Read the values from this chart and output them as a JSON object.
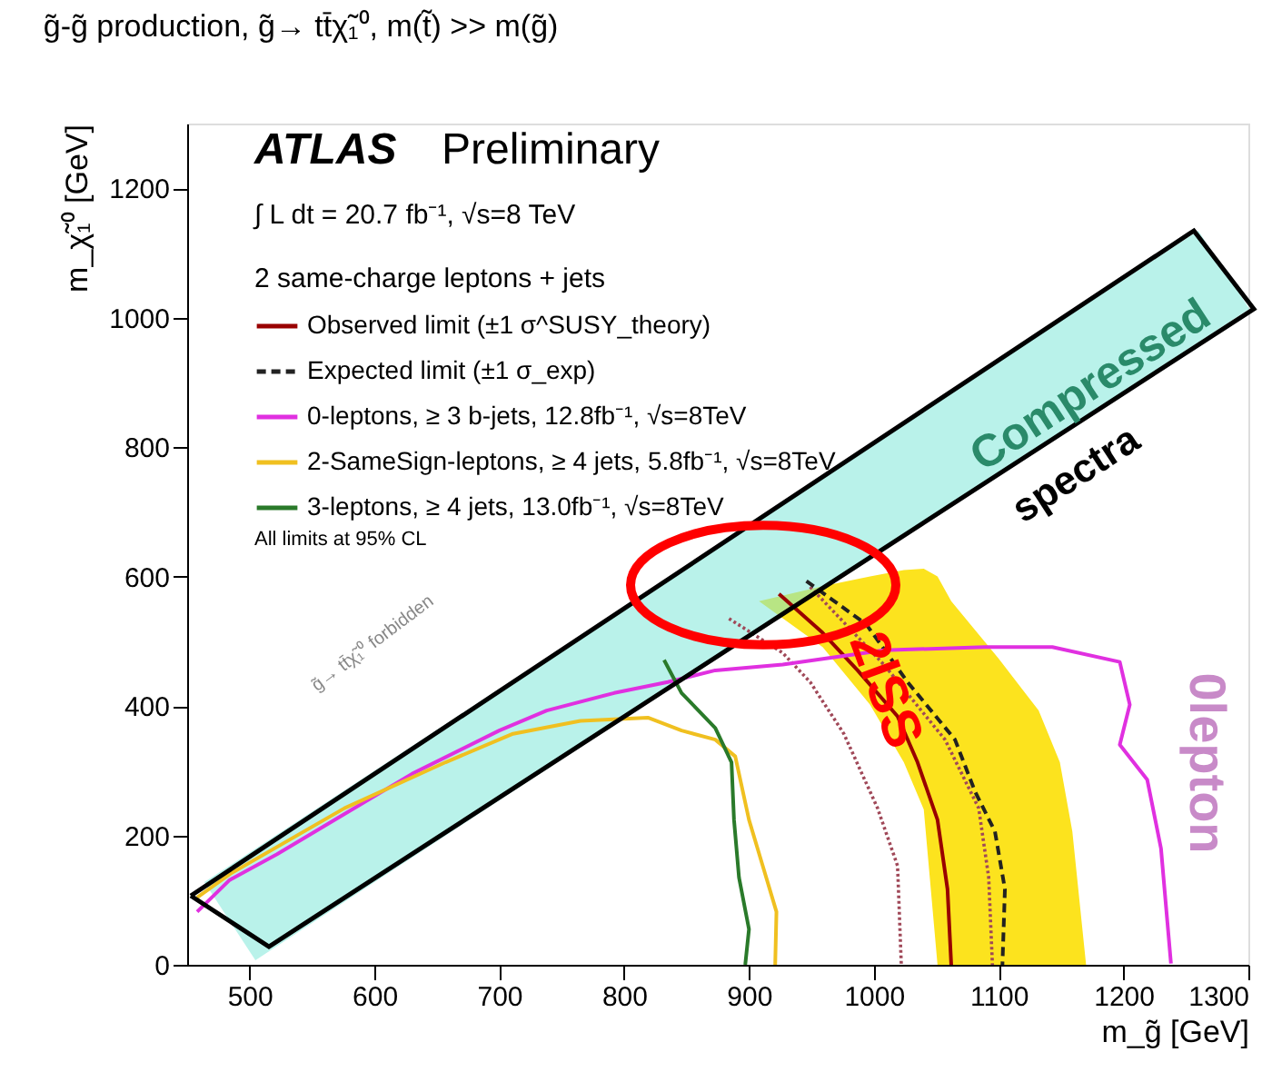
{
  "chart_data": {
    "type": "line",
    "title": "g̃-g̃ production, g̃→ tt̄χ̃₁⁰, m(t̃) >> m(g̃)",
    "xlabel": "m_g̃ [GeV]",
    "ylabel": "m_χ̃₁⁰ [GeV]",
    "legend_title": "2 same-charge leptons + jets",
    "legend": "top left",
    "xlim": [
      450,
      1300
    ],
    "xticks": [
      500,
      600,
      700,
      800,
      900,
      1000,
      1100,
      1200,
      1300
    ],
    "ylim": [
      0,
      1300
    ],
    "yticks": [
      0,
      200,
      400,
      600,
      800,
      1000,
      1200
    ],
    "grid": false,
    "series": [
      {
        "type": "area",
        "color": "#fce31e",
        "x": [
          908,
          959,
          997,
          1024,
          1040,
          1051,
          1062,
          1100,
          1132,
          1149,
          1159,
          1170
        ],
        "values": [
          null,
          null,
          null,
          null,
          null,
          null,
          null,
          null,
          null,
          null,
          null,
          null
        ],
        "lower": [
          562,
          491,
          402,
          313,
          240,
          0,
          0,
          0,
          0,
          0,
          0,
          0
        ],
        "upper": [
          562,
          585,
          600,
          610,
          612,
          600,
          562,
          473,
          393,
          313,
          206,
          0
        ]
      },
      {
        "name": "Observed limit (±1 σ^SUSY_theory)",
        "color": "#990000",
        "line_style": "solid",
        "x": [
          924,
          959,
          987,
          1019,
          1035,
          1051,
          1059,
          1062
        ],
        "values": [
          573,
          513,
          455,
          384,
          313,
          224,
          117,
          0
        ]
      },
      {
        "color": "#a04858",
        "line_style": "dotted",
        "x": [
          884,
          927,
          949,
          976,
          1003,
          1019,
          1022
        ],
        "values": [
          535,
          482,
          437,
          357,
          242,
          153,
          0
        ]
      },
      {
        "color": "#a04858",
        "line_style": "dotted",
        "x": [
          949,
          1008,
          1057,
          1084,
          1092,
          1095
        ],
        "values": [
          584,
          464,
          348,
          242,
          135,
          0
        ]
      },
      {
        "name": "Expected limit (±1 σ_exp)",
        "color": "#222222",
        "line_style": "dashed",
        "x": [
          946,
          994,
          1027,
          1065,
          1081,
          1097,
          1105,
          1103
        ],
        "values": [
          593,
          526,
          437,
          348,
          268,
          206,
          117,
          0
        ]
      },
      {
        "name": "0-leptons, ≥ 3 b-jets, 12.8fb⁻¹, √s=8TeV",
        "color": "#e030e0",
        "line_style": "solid",
        "x": [
          458,
          484,
          522,
          576,
          630,
          700,
          738,
          792,
          835,
          873,
          927,
          1008,
          1089,
          1143,
          1197,
          1205,
          1197,
          1219,
          1230,
          1238
        ],
        "values": [
          82,
          131,
          171,
          233,
          295,
          362,
          393,
          420,
          437,
          455,
          464,
          486,
          491,
          491,
          468,
          402,
          340,
          286,
          180,
          2
        ]
      },
      {
        "name": "2-SameSign-leptons, ≥ 4 jets, 5.8fb⁻¹, √s=8TeV",
        "color": "#f0c020",
        "line_style": "solid",
        "x": [
          458,
          484,
          576,
          657,
          711,
          765,
          819,
          846,
          873,
          889,
          900,
          911,
          922,
          921
        ],
        "values": [
          104,
          140,
          242,
          313,
          357,
          377,
          382,
          362,
          348,
          322,
          224,
          153,
          82,
          0
        ]
      },
      {
        "name": "3-leptons, ≥ 4 jets, 13.0fb⁻¹, √s=8TeV",
        "color": "#2a7a2a",
        "line_style": "solid",
        "x": [
          832,
          846,
          873,
          886,
          888,
          892,
          900,
          897
        ],
        "values": [
          471,
          420,
          366,
          313,
          224,
          135,
          55,
          0
        ]
      }
    ],
    "annotations": [
      "ATLAS",
      "Preliminary",
      "∫ L dt = 20.7 fb⁻¹, √s=8 TeV",
      "All limits at 95% CL",
      "g̃→ tt̄χ̃₁⁰ forbidden",
      "Compressed",
      "spectra",
      "2lSS",
      "0lepton"
    ]
  }
}
